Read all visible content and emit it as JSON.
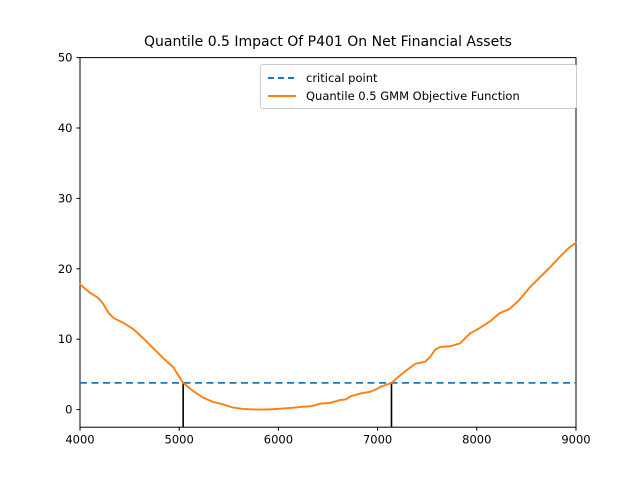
{
  "chart_data": {
    "type": "line",
    "title": "Quantile 0.5 Impact Of P401 On Net Financial Assets",
    "xlabel": "",
    "ylabel": "",
    "xlim": [
      4000,
      9000
    ],
    "ylim": [
      -2.5,
      50
    ],
    "x_ticks": [
      4000,
      5000,
      6000,
      7000,
      8000,
      9000
    ],
    "x_tick_labels": [
      "4000",
      "5000",
      "6000",
      "7000",
      "8000",
      "9000"
    ],
    "y_ticks": [
      0,
      10,
      20,
      30,
      40,
      50
    ],
    "y_tick_labels": [
      "0",
      "10",
      "20",
      "30",
      "40",
      "50"
    ],
    "grid": false,
    "legend": {
      "position": "upper center-right",
      "items": [
        {
          "label": "critical point",
          "color": "#1f77b4",
          "style": "dashed"
        },
        {
          "label": "Quantile 0.5 GMM Objective Function",
          "color": "#ff7f0e",
          "style": "solid"
        }
      ]
    },
    "critical_point_line": {
      "y": 3.8,
      "color": "#1f77b4",
      "style": "dashed"
    },
    "critical_vlines": {
      "x": [
        5040,
        7140
      ],
      "ymax": 3.8,
      "color": "#000000"
    },
    "series": [
      {
        "name": "Quantile 0.5 GMM Objective Function",
        "color": "#ff7f0e",
        "x": [
          4000,
          4100,
          4180,
          4230,
          4290,
          4340,
          4440,
          4540,
          4640,
          4740,
          4840,
          4940,
          5040,
          5140,
          5240,
          5340,
          5440,
          5540,
          5640,
          5740,
          5840,
          5940,
          6040,
          6140,
          6240,
          6340,
          6420,
          6520,
          6620,
          6680,
          6730,
          6830,
          6930,
          6980,
          7030,
          7140,
          7230,
          7330,
          7380,
          7430,
          7480,
          7530,
          7580,
          7630,
          7730,
          7830,
          7930,
          8030,
          8130,
          8230,
          8330,
          8430,
          8530,
          8630,
          8730,
          8830,
          8930,
          9000
        ],
        "y": [
          17.8,
          16.6,
          15.9,
          15.1,
          13.7,
          13.0,
          12.3,
          11.4,
          10.1,
          8.7,
          7.3,
          6.0,
          3.8,
          2.65,
          1.7,
          1.1,
          0.75,
          0.3,
          0.1,
          0.02,
          0.0,
          0.05,
          0.15,
          0.25,
          0.4,
          0.5,
          0.85,
          0.95,
          1.35,
          1.45,
          1.9,
          2.3,
          2.55,
          2.85,
          3.25,
          3.8,
          4.9,
          6.0,
          6.5,
          6.65,
          6.8,
          7.5,
          8.5,
          8.9,
          9.0,
          9.4,
          10.8,
          11.6,
          12.5,
          13.7,
          14.3,
          15.6,
          17.3,
          18.7,
          20.1,
          21.6,
          23.0,
          23.7
        ]
      }
    ]
  }
}
